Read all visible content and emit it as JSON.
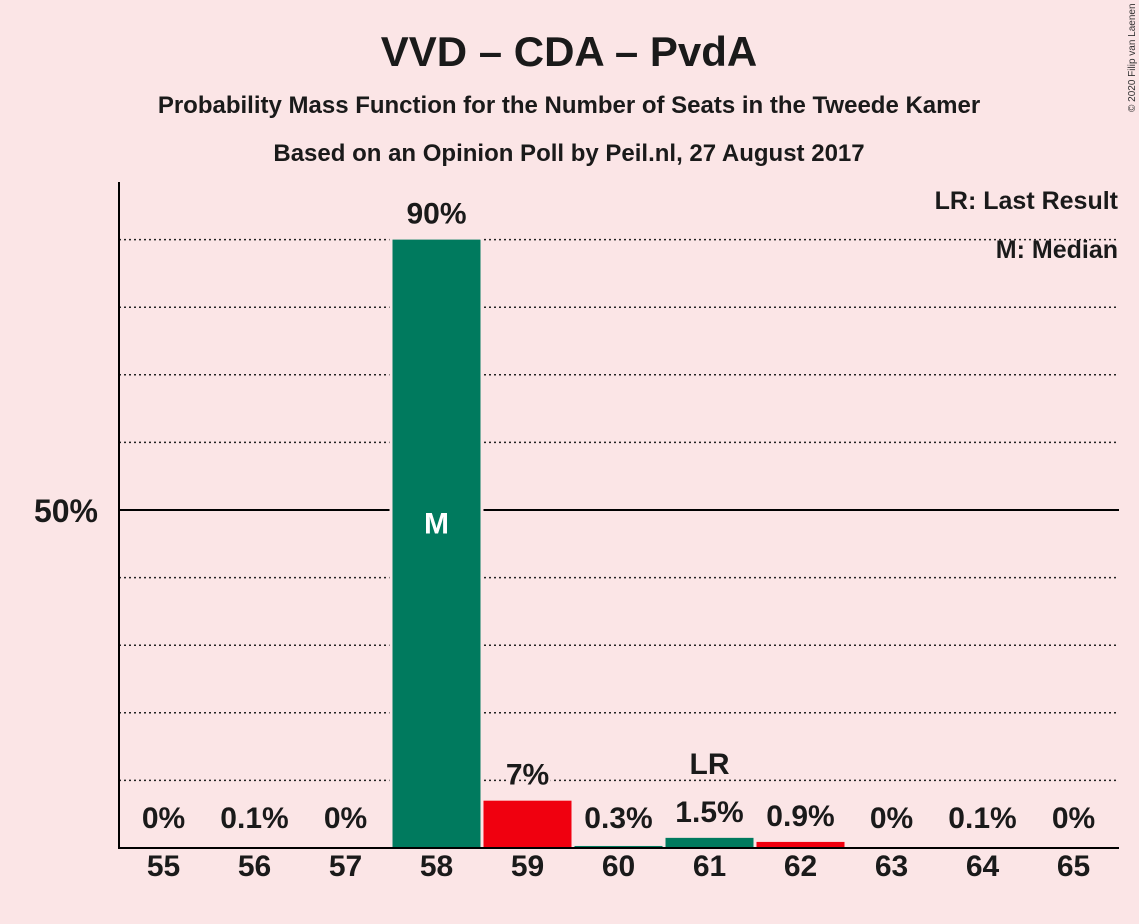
{
  "chart_data": {
    "type": "bar",
    "title": "VVD – CDA – PvdA",
    "subtitle": "Probability Mass Function for the Number of Seats in the Tweede Kamer",
    "subtitle2": "Based on an Opinion Poll by Peil.nl, 27 August 2017",
    "copyright": "© 2020 Filip van Laenen",
    "legend": [
      "LR: Last Result",
      "M: Median"
    ],
    "legend_position": "top-right",
    "categories": [
      "55",
      "56",
      "57",
      "58",
      "59",
      "60",
      "61",
      "62",
      "63",
      "64",
      "65"
    ],
    "values": [
      0,
      0.1,
      0,
      90,
      7,
      0.3,
      1.5,
      0.9,
      0,
      0.1,
      0
    ],
    "value_labels": [
      "0%",
      "0.1%",
      "0%",
      "90%",
      "7%",
      "0.3%",
      "1.5%",
      "0.9%",
      "0%",
      "0.1%",
      "0%"
    ],
    "bar_colors": [
      "#007a5e",
      "#007a5e",
      "#007a5e",
      "#007a5e",
      "#f0000f",
      "#007a5e",
      "#007a5e",
      "#f0000f",
      "#007a5e",
      "#007a5e",
      "#007a5e"
    ],
    "median_category": "58",
    "median_marker": "M",
    "last_result_category": "61",
    "last_result_marker": "LR",
    "ylim": [
      0,
      100
    ],
    "yticks": [
      {
        "value": 50,
        "label": "50%"
      }
    ],
    "dotted_gridlines": [
      10,
      20,
      30,
      40,
      60,
      70,
      80,
      90
    ],
    "grid": true
  }
}
